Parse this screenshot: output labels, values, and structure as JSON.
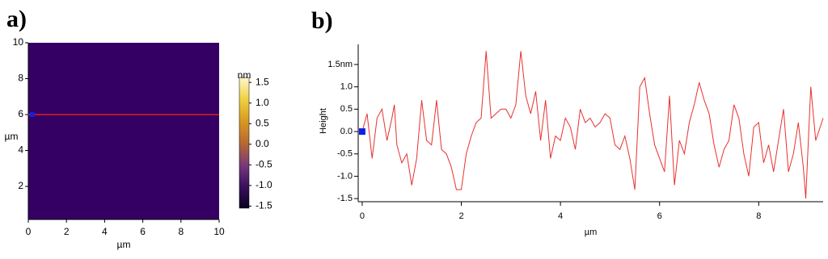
{
  "chart_data": [
    {
      "type": "image",
      "panel_label": "a)",
      "x_label": "µm",
      "y_label": "µm",
      "xlim": [
        0,
        10
      ],
      "xticks": [
        0,
        2,
        4,
        6,
        8,
        10
      ],
      "ylim": [
        0.16,
        10
      ],
      "yticks": [
        2,
        4,
        6,
        8,
        10
      ],
      "profile_y": 6,
      "profile_color": "#e02020",
      "cursor": [
        0.2,
        6
      ],
      "cursor_color": "#1020e0",
      "colorbar_label": "nm",
      "clim": [
        -1.55,
        1.62
      ],
      "colorbar_ticks": [
        1.5,
        {
          "value": 1,
          "label": "1.0"
        },
        0.5,
        {
          "value": 0,
          "label": "0.0"
        },
        -0.5,
        {
          "value": -1,
          "label": "-1.0"
        },
        -1.5
      ],
      "colormap": [
        "#0a0020",
        "#3a1060",
        "#7a3a7a",
        "#b86a30",
        "#d89a20",
        "#f0d040",
        "#fff8d0"
      ]
    },
    {
      "type": "line",
      "panel_label": "b)",
      "x_label": "µm",
      "y_label": "Height",
      "xlim": [
        -0.08,
        9.3
      ],
      "xticks": [
        0,
        2,
        4,
        6,
        8
      ],
      "ylim": [
        -1.57,
        1.95
      ],
      "yticks": [
        {
          "value": 1.5,
          "label": "1.5nm"
        },
        {
          "value": 1,
          "label": "1.0"
        },
        0.5,
        {
          "value": 0,
          "label": "0.0"
        },
        -0.5,
        {
          "value": -1,
          "label": "-1.0"
        },
        -1.5
      ],
      "cursor": [
        0,
        0
      ],
      "cursor_color": "#1020e0",
      "series": [
        {
          "color": "#e83030",
          "x": [
            0,
            0.1,
            0.2,
            0.3,
            0.4,
            0.5,
            0.6,
            0.65,
            0.7,
            0.8,
            0.9,
            1.0,
            1.1,
            1.2,
            1.3,
            1.4,
            1.5,
            1.6,
            1.7,
            1.8,
            1.9,
            2.0,
            2.1,
            2.2,
            2.3,
            2.4,
            2.5,
            2.6,
            2.7,
            2.8,
            2.9,
            3.0,
            3.1,
            3.2,
            3.3,
            3.4,
            3.5,
            3.6,
            3.7,
            3.8,
            3.9,
            4.0,
            4.1,
            4.2,
            4.3,
            4.4,
            4.5,
            4.6,
            4.7,
            4.8,
            4.9,
            5.0,
            5.1,
            5.2,
            5.3,
            5.4,
            5.5,
            5.6,
            5.7,
            5.8,
            5.9,
            6.0,
            6.1,
            6.2,
            6.3,
            6.4,
            6.5,
            6.6,
            6.7,
            6.8,
            6.9,
            7.0,
            7.1,
            7.2,
            7.3,
            7.4,
            7.5,
            7.6,
            7.7,
            7.8,
            7.9,
            8.0,
            8.1,
            8.2,
            8.3,
            8.4,
            8.5,
            8.6,
            8.7,
            8.8,
            8.9,
            8.95,
            9.05,
            9.15,
            9.3
          ],
          "values": [
            0,
            0.4,
            -0.6,
            0.3,
            0.5,
            -0.2,
            0.3,
            0.6,
            -0.3,
            -0.7,
            -0.5,
            -1.2,
            -0.6,
            0.7,
            -0.2,
            -0.3,
            0.7,
            -0.4,
            -0.5,
            -0.8,
            -1.3,
            -1.3,
            -0.5,
            -0.1,
            0.2,
            0.3,
            1.8,
            0.3,
            0.4,
            0.5,
            0.5,
            0.3,
            0.6,
            1.8,
            0.8,
            0.4,
            0.9,
            -0.2,
            0.7,
            -0.6,
            -0.1,
            -0.2,
            0.3,
            0.1,
            -0.4,
            0.5,
            0.2,
            0.3,
            0.1,
            0.2,
            0.4,
            0.3,
            -0.3,
            -0.4,
            -0.1,
            -0.6,
            -1.3,
            1.0,
            1.2,
            0.4,
            -0.3,
            -0.6,
            -0.9,
            0.8,
            -1.2,
            -0.2,
            -0.5,
            0.2,
            0.6,
            1.1,
            0.7,
            0.4,
            -0.3,
            -0.8,
            -0.4,
            -0.2,
            0.6,
            0.3,
            -0.5,
            -1.0,
            0.1,
            0.2,
            -0.7,
            -0.3,
            -0.9,
            -0.2,
            0.5,
            -0.9,
            -0.5,
            0.2,
            -0.8,
            -1.5,
            1.0,
            -0.2,
            0.3
          ]
        }
      ]
    }
  ]
}
